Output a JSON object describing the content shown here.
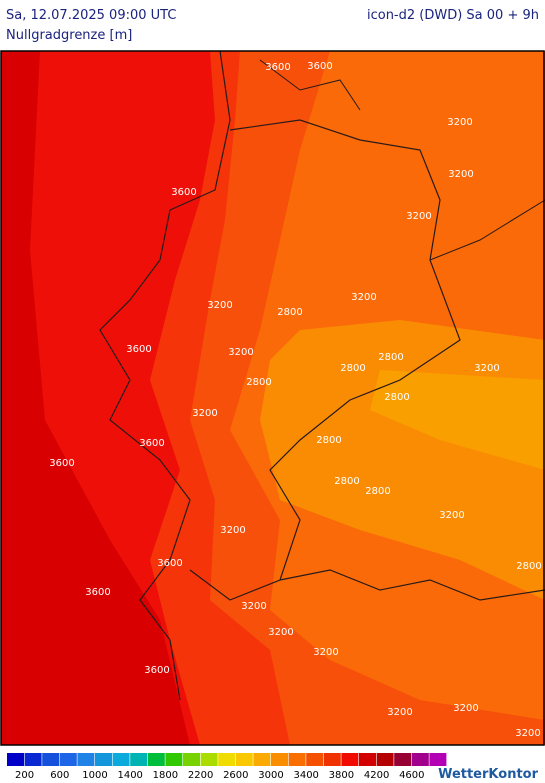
{
  "header": {
    "left": "Sa, 12.07.2025 09:00 UTC",
    "right": "icon-d2 (DWD) Sa 00 + 9h",
    "subtitle": "Nullgradgrenze [m]"
  },
  "contour_labels": [
    "3600",
    "3600",
    "3200",
    "3200",
    "3600",
    "3200",
    "3200",
    "3200",
    "2800",
    "3600",
    "3200",
    "2800",
    "2800",
    "3200",
    "2800",
    "2800",
    "3200",
    "3600",
    "2800",
    "3600",
    "2800",
    "2800",
    "3200",
    "3200",
    "2800",
    "3600",
    "3600",
    "3200",
    "3200",
    "3200",
    "3600",
    "3200",
    "3200",
    "3200"
  ],
  "legend": {
    "colors": [
      "#0000c8",
      "#0a28d2",
      "#1450dc",
      "#1e64e6",
      "#1e82e6",
      "#1496dc",
      "#0aaadc",
      "#00b4b4",
      "#00be3c",
      "#32c800",
      "#78d200",
      "#aadc00",
      "#f0dc00",
      "#fac800",
      "#faaa00",
      "#fa8c00",
      "#fa6e00",
      "#f55000",
      "#f03200",
      "#f00a00",
      "#d20000",
      "#b40000",
      "#960032",
      "#a0008c",
      "#b400b4"
    ],
    "labels": [
      "200",
      "600",
      "1000",
      "1400",
      "1800",
      "2200",
      "2600",
      "3000",
      "3400",
      "3800",
      "4200",
      "4600"
    ]
  },
  "brand": "WetterKontor"
}
